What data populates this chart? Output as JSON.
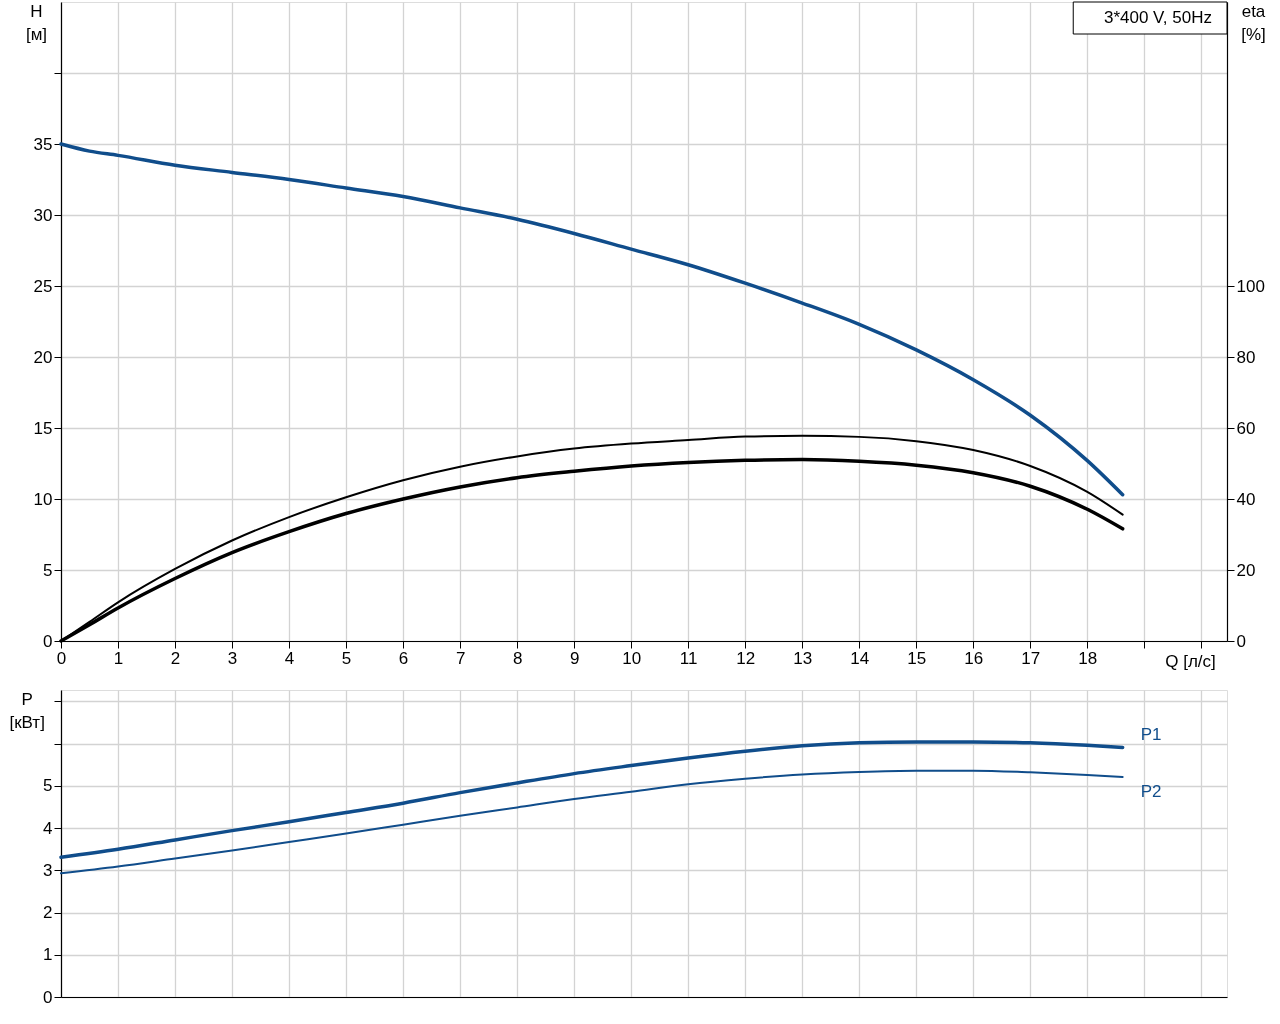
{
  "chart_data": [
    {
      "type": "line",
      "xlabel": "Q [л/с]",
      "ylabel": "H [м]",
      "y2label": "eta [%]",
      "annotations": [
        "3*400 V, 50Hz"
      ],
      "x": [
        0,
        0.5,
        1,
        2,
        3,
        4,
        5,
        6,
        7,
        8,
        9,
        10,
        11,
        12,
        13,
        14,
        15,
        16,
        17,
        18,
        18.62
      ],
      "series": [
        {
          "color": "#104d8b",
          "values": [
            35.0,
            34.5,
            34.2,
            33.5,
            33.0,
            32.5,
            31.9,
            31.3,
            30.5,
            29.7,
            28.7,
            27.6,
            26.5,
            25.2,
            23.8,
            22.3,
            20.5,
            18.4,
            15.9,
            12.7,
            10.3
          ]
        },
        {
          "color": "#000000",
          "axis": "y2",
          "values": [
            0,
            5.4,
            10.9,
            20.3,
            28.3,
            34.9,
            40.5,
            45.3,
            49.1,
            52.0,
            54.2,
            55.6,
            56.6,
            57.6,
            57.8,
            57.5,
            56.3,
            53.8,
            49.3,
            42.0,
            35.6
          ]
        },
        {
          "color": "#000000",
          "axis": "y2",
          "values": [
            0,
            4.6,
            9.3,
            17.6,
            24.9,
            30.8,
            35.9,
            40.0,
            43.4,
            46.0,
            47.8,
            49.3,
            50.3,
            50.9,
            51.1,
            50.6,
            49.5,
            47.4,
            43.6,
            37.1,
            31.6
          ]
        }
      ],
      "xlim": [
        0,
        20.45
      ],
      "xticks": [
        0,
        1,
        2,
        3,
        4,
        5,
        6,
        7,
        8,
        9,
        10,
        11,
        12,
        13,
        14,
        15,
        16,
        17,
        18,
        {
          "value": 19,
          "label": null
        },
        {
          "value": 20,
          "label": null
        }
      ],
      "ylim": [
        0,
        45
      ],
      "yticks": [
        0,
        5,
        10,
        15,
        20,
        25,
        30,
        35,
        {
          "value": 40,
          "label": null
        }
      ],
      "y2lim": [
        0,
        180
      ],
      "y2ticks": [
        0,
        20,
        40,
        60,
        80,
        100
      ],
      "grid": true
    },
    {
      "type": "line",
      "ylabel": "P [кВт]",
      "x": [
        0,
        1,
        2,
        3,
        4,
        5,
        6,
        7,
        8,
        9,
        10,
        11,
        12,
        13,
        14,
        15,
        16,
        17,
        18,
        18.62
      ],
      "series": [
        {
          "name": "P1",
          "color": "#104d8b",
          "values": [
            3.31,
            3.5,
            3.72,
            3.94,
            4.15,
            4.37,
            4.59,
            4.84,
            5.07,
            5.29,
            5.48,
            5.66,
            5.82,
            5.95,
            6.02,
            6.04,
            6.04,
            6.02,
            5.96,
            5.91
          ]
        },
        {
          "name": "P2",
          "color": "#104d8b",
          "values": [
            2.93,
            3.09,
            3.28,
            3.47,
            3.67,
            3.87,
            4.08,
            4.29,
            4.49,
            4.69,
            4.86,
            5.04,
            5.17,
            5.27,
            5.33,
            5.36,
            5.36,
            5.32,
            5.26,
            5.21
          ]
        }
      ],
      "xlim": [
        0,
        20.45
      ],
      "xticks": [
        0,
        1,
        2,
        3,
        4,
        5,
        6,
        7,
        8,
        9,
        10,
        11,
        12,
        13,
        14,
        15,
        16,
        17,
        18,
        19,
        20
      ],
      "ylim": [
        0,
        7.27
      ],
      "yticks": [
        0,
        1,
        2,
        3,
        4,
        5,
        {
          "value": 6,
          "label": null
        },
        {
          "value": 7,
          "label": null
        }
      ],
      "tick_labels": "y",
      "grid": true
    }
  ]
}
